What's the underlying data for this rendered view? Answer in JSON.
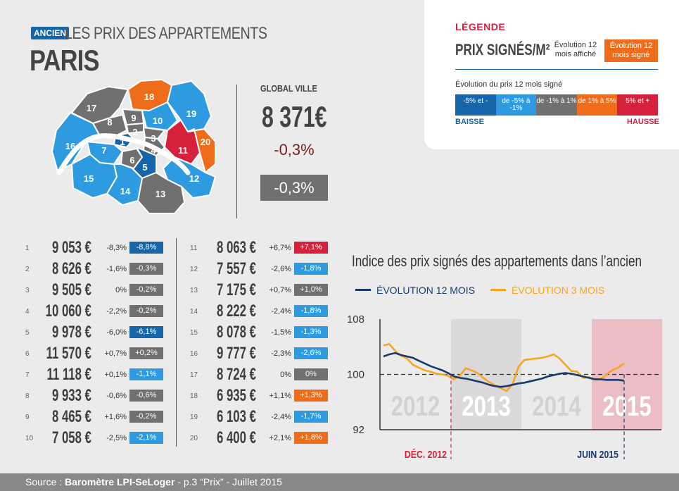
{
  "header": {
    "badge": "ANCIEN",
    "title": "LES PRIX DES APPARTEMENTS",
    "city": "PARIS"
  },
  "legend": {
    "title": "LÉGENDE",
    "subtitle": "PRIX SIGNÉS/M²",
    "evo_a": "Évolution 12 mois affiché",
    "evo_b": "Évolution 12 mois signé",
    "evo12_label": "Évolution du prix 12 mois signé",
    "scale": [
      {
        "label": "-5% et -",
        "color": "#1565a8"
      },
      {
        "label": "de -5% à -1%",
        "color": "#2e9be0"
      },
      {
        "label": "de -1% à 1%",
        "color": "#707070"
      },
      {
        "label": "de 1% à 5%",
        "color": "#ef6c1a"
      },
      {
        "label": "5% et +",
        "color": "#d5213c"
      }
    ],
    "baisse": "BAISSE",
    "hausse": "HAUSSE"
  },
  "map": {
    "districts": [
      {
        "id": "1",
        "color": "#1565a8"
      },
      {
        "id": "2",
        "color": "#707070"
      },
      {
        "id": "3",
        "color": "#707070"
      },
      {
        "id": "4",
        "color": "#707070"
      },
      {
        "id": "5",
        "color": "#1565a8"
      },
      {
        "id": "6",
        "color": "#707070"
      },
      {
        "id": "7",
        "color": "#2e9be0"
      },
      {
        "id": "8",
        "color": "#707070"
      },
      {
        "id": "9",
        "color": "#707070"
      },
      {
        "id": "10",
        "color": "#2e9be0"
      },
      {
        "id": "11",
        "color": "#d5213c"
      },
      {
        "id": "12",
        "color": "#2e9be0"
      },
      {
        "id": "13",
        "color": "#707070"
      },
      {
        "id": "14",
        "color": "#2e9be0"
      },
      {
        "id": "15",
        "color": "#2e9be0"
      },
      {
        "id": "16",
        "color": "#2e9be0"
      },
      {
        "id": "17",
        "color": "#707070"
      },
      {
        "id": "18",
        "color": "#ef6c1a"
      },
      {
        "id": "19",
        "color": "#2e9be0"
      },
      {
        "id": "20",
        "color": "#ef6c1a"
      }
    ]
  },
  "global": {
    "label": "GLOBAL VILLE",
    "price": "8 371€",
    "evo_affiche": "-0,3%",
    "evo_signe": "-0,3%"
  },
  "table": [
    {
      "n": "1",
      "price": "9 053 €",
      "evo": "-8,3%",
      "badge": "-8,8%",
      "color": "#1565a8"
    },
    {
      "n": "2",
      "price": "8 626 €",
      "evo": "-1,6%",
      "badge": "-0,3%",
      "color": "#707070"
    },
    {
      "n": "3",
      "price": "9 505 €",
      "evo": "0%",
      "badge": "-0,2%",
      "color": "#707070"
    },
    {
      "n": "4",
      "price": "10 060 €",
      "evo": "-2,2%",
      "badge": "-0,2%",
      "color": "#707070"
    },
    {
      "n": "5",
      "price": "9 978 €",
      "evo": "-6,0%",
      "badge": "-6,1%",
      "color": "#1565a8"
    },
    {
      "n": "6",
      "price": "11 570 €",
      "evo": "+0,7%",
      "badge": "+0,2%",
      "color": "#707070"
    },
    {
      "n": "7",
      "price": "11 118 €",
      "evo": "+0,1%",
      "badge": "-1,1%",
      "color": "#2e9be0"
    },
    {
      "n": "8",
      "price": "9 933 €",
      "evo": "-0,6%",
      "badge": "-0,6%",
      "color": "#707070"
    },
    {
      "n": "9",
      "price": "8 465 €",
      "evo": "+1,6%",
      "badge": "-0,2%",
      "color": "#707070"
    },
    {
      "n": "10",
      "price": "7 058 €",
      "evo": "-2,5%",
      "badge": "-2,1%",
      "color": "#2e9be0"
    },
    {
      "n": "11",
      "price": "8 063 €",
      "evo": "+6,7%",
      "badge": "+7,1%",
      "color": "#d5213c"
    },
    {
      "n": "12",
      "price": "7 557 €",
      "evo": "-2,6%",
      "badge": "-1,8%",
      "color": "#2e9be0"
    },
    {
      "n": "13",
      "price": "7 175 €",
      "evo": "+0,7%",
      "badge": "+1,0%",
      "color": "#707070"
    },
    {
      "n": "14",
      "price": "8 222 €",
      "evo": "-2,4%",
      "badge": "-1,8%",
      "color": "#2e9be0"
    },
    {
      "n": "15",
      "price": "8 078 €",
      "evo": "-1,5%",
      "badge": "-1,3%",
      "color": "#2e9be0"
    },
    {
      "n": "16",
      "price": "9 777 €",
      "evo": "-2,3%",
      "badge": "-2,6%",
      "color": "#2e9be0"
    },
    {
      "n": "17",
      "price": "8 724 €",
      "evo": "0%",
      "badge": "0%",
      "color": "#707070"
    },
    {
      "n": "18",
      "price": "6 935 €",
      "evo": "+1,1%",
      "badge": "+1,3%",
      "color": "#ef6c1a"
    },
    {
      "n": "19",
      "price": "6 103 €",
      "evo": "-2,4%",
      "badge": "-1,7%",
      "color": "#2e9be0"
    },
    {
      "n": "20",
      "price": "6 400 €",
      "evo": "+2,1%",
      "badge": "+1,8%",
      "color": "#ef6c1a"
    }
  ],
  "chart_data": {
    "type": "line",
    "title": "Indice des prix signés des appartements dans l’ancien",
    "ylim": [
      92,
      108
    ],
    "yticks": [
      108,
      100,
      92
    ],
    "reference_line": 100,
    "year_bands": [
      {
        "label": "2012",
        "fill": "#ebebeb",
        "text": "#d2d2d2"
      },
      {
        "label": "2013",
        "fill": "#dadada",
        "text": "#ffffff"
      },
      {
        "label": "2014",
        "fill": "#ebebeb",
        "text": "#d2d2d2"
      },
      {
        "label": "2015",
        "fill": "#eabec4",
        "text": "#ffffff"
      }
    ],
    "markers": [
      {
        "label": "DÉC. 2012",
        "color": "#d5213c"
      },
      {
        "label": "JUIN 2015",
        "color": "#1a3a6e"
      }
    ],
    "series": [
      {
        "name": "ÉVOLUTION 12 MOIS",
        "color": "#1a3a6e",
        "values": [
          102.6,
          102.9,
          103.1,
          102.8,
          102.6,
          102.4,
          102.0,
          101.6,
          101.2,
          100.9,
          100.6,
          100.2,
          99.7,
          99.5,
          99.4,
          99.2,
          99.0,
          98.8,
          98.5,
          98.3,
          98.2,
          98.3,
          98.5,
          98.7,
          98.8,
          99.0,
          99.2,
          99.4,
          99.7,
          99.9,
          100.1,
          100.2,
          100.1,
          99.9,
          99.7,
          99.5,
          99.3,
          99.3,
          99.2,
          99.2,
          99.2,
          99.1
        ]
      },
      {
        "name": "ÉVOLUTION 3 MOIS",
        "color": "#f5a623",
        "values": [
          104.2,
          104.4,
          103.4,
          102.7,
          102.3,
          101.4,
          101.0,
          100.6,
          100.4,
          100.1,
          100.0,
          99.8,
          99.3,
          99.8,
          100.9,
          100.6,
          100.2,
          99.5,
          98.9,
          98.4,
          98.0,
          97.6,
          98.6,
          101.1,
          102.1,
          102.2,
          102.3,
          102.4,
          102.6,
          102.9,
          102.3,
          101.4,
          100.5,
          100.4,
          99.5,
          99.6,
          99.3,
          99.3,
          100.0,
          100.6,
          101.0,
          101.6
        ]
      }
    ]
  },
  "footer": {
    "prefix": "Source : ",
    "bold": "Baromètre LPI-SeLoger",
    "suffix": " - p.3 “Prix” - Juillet 2015"
  }
}
